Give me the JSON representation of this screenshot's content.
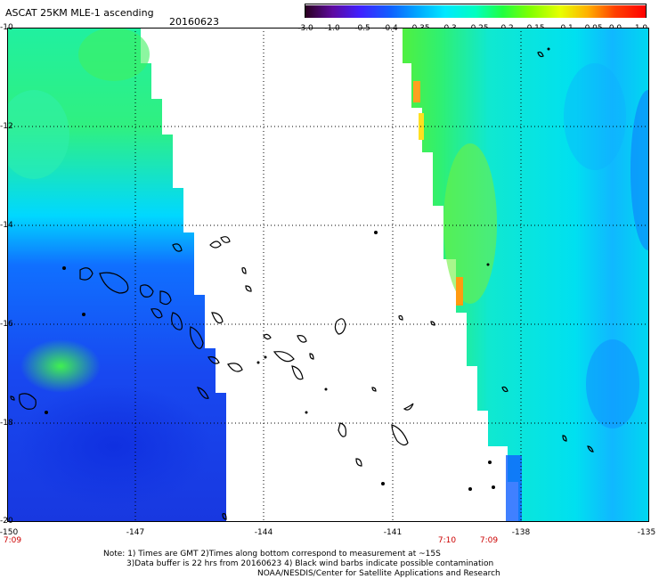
{
  "header": {
    "title": "ASCAT 25KM MLE-1 ascending",
    "date": "20160623"
  },
  "colorbar": {
    "labels": [
      "-3.0",
      "-1.0",
      "-0.5",
      "-0.4",
      "-0.35",
      "-0.3",
      "-0.25",
      "-0.2",
      "-0.15",
      "-0.1",
      "-0.05",
      "0.0",
      "1.0"
    ],
    "colors": [
      "#2a0020",
      "#5e0aa0",
      "#4020ff",
      "#1060ff",
      "#00a8ff",
      "#00e8ff",
      "#00ffc0",
      "#20ff40",
      "#80ff00",
      "#e8ff00",
      "#ffb000",
      "#ff4000",
      "#ff0000"
    ]
  },
  "axes": {
    "lat_labels": [
      "-10",
      "-12",
      "-14",
      "-16",
      "-18",
      "-20"
    ],
    "lon_labels": [
      "-150",
      "-147",
      "-144",
      "-141",
      "-138",
      "-135"
    ]
  },
  "times": [
    {
      "label": "7:09"
    },
    {
      "label": "7:10"
    },
    {
      "label": "7:09"
    }
  ],
  "notes": {
    "line1": "Note: 1) Times are GMT 2)Times along bottom correspond to measurement at ~15S",
    "line2": "3)Data buffer is 22 hrs from 20160623 4) Black wind barbs indicate possible contamination",
    "line3": "NOAA/NESDIS/Center for Satellite Applications and Research"
  }
}
